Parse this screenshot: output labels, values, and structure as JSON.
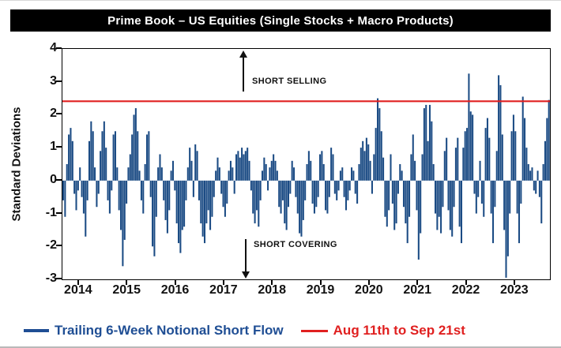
{
  "colors": {
    "bar_blue": "#1b4b84",
    "legend_blue": "#1f4e94",
    "red": "#e02020",
    "title_bg": "#000000",
    "title_fg": "#ffffff"
  },
  "title": "Prime Book – US Equities (Single Stocks + Macro Products)",
  "legend": [
    {
      "label": "Trailing 6-Week Notional Short Flow",
      "color": "#1f4e94",
      "swatch": "line"
    },
    {
      "label": "Aug 11th to Sep 21st",
      "color": "#e02020",
      "swatch": "line"
    }
  ],
  "chart_data": {
    "type": "bar",
    "title": "Prime Book – US Equities (Single Stocks + Macro Products)",
    "xlabel": "",
    "ylabel": "Standard Deviations",
    "ylim": [
      -3,
      4
    ],
    "y_ticks": [
      4,
      3,
      2,
      1,
      0,
      -1,
      -2,
      -3
    ],
    "x_ticks": [
      2014,
      2015,
      2016,
      2017,
      2018,
      2019,
      2020,
      2021,
      2022,
      2023
    ],
    "x_range": [
      2013.66,
      2023.72
    ],
    "grid": false,
    "legend_position": "bottom",
    "ref_line": {
      "label": "Aug 11th to Sep 21st",
      "value": 2.41,
      "color": "#e02020"
    },
    "annotations": [
      {
        "text": "SHORT SELLING",
        "arrow": "up"
      },
      {
        "text": "SHORT COVERING",
        "arrow": "down"
      }
    ],
    "series": [
      {
        "name": "Trailing 6-Week Notional Short Flow",
        "color": "#1b4b84",
        "x_start": 2013.66,
        "x_step": 0.03854,
        "values": [
          -0.6,
          -1.1,
          0.5,
          1.4,
          1.6,
          1.2,
          -0.4,
          -0.9,
          -0.3,
          0.4,
          -0.5,
          -1.0,
          -1.7,
          -0.6,
          1.2,
          1.8,
          1.5,
          0.4,
          -0.8,
          -0.4,
          0.9,
          1.5,
          1.8,
          1.0,
          -0.6,
          -1.0,
          -0.3,
          1.4,
          1.5,
          0.4,
          -0.9,
          -1.5,
          -2.6,
          -1.8,
          -0.7,
          0.4,
          0.8,
          1.4,
          2.0,
          2.2,
          1.5,
          0.3,
          -0.6,
          -1.0,
          0.5,
          1.4,
          1.5,
          -0.5,
          -2.0,
          -2.3,
          -1.1,
          0.4,
          0.8,
          0.4,
          -0.6,
          -1.2,
          -1.6,
          -0.9,
          0.3,
          0.6,
          -0.3,
          -1.3,
          -1.9,
          -2.2,
          -1.5,
          -1.4,
          -0.6,
          0.4,
          1.0,
          0.6,
          -0.5,
          1.1,
          0.9,
          -0.6,
          -1.3,
          -1.7,
          -1.9,
          -1.3,
          -0.9,
          -1.5,
          -1.1,
          -0.5,
          0.3,
          0.7,
          0.4,
          -0.4,
          -0.8,
          -1.1,
          -0.7,
          0.3,
          0.6,
          0.4,
          -0.4,
          0.8,
          0.9,
          0.7,
          1.0,
          0.8,
          0.9,
          1.0,
          0.6,
          -0.3,
          -1.0,
          -1.3,
          -0.9,
          -1.4,
          -0.6,
          0.3,
          0.7,
          0.5,
          -0.3,
          0.4,
          0.6,
          0.8,
          0.6,
          0.3,
          -0.8,
          -1.0,
          -0.6,
          -1.3,
          -1.5,
          -0.8,
          -0.4,
          0.6,
          0.4,
          -0.5,
          -1.0,
          -1.6,
          -1.7,
          -1.2,
          -0.6,
          0.5,
          0.9,
          0.6,
          -0.7,
          -1.0,
          -0.8,
          -0.5,
          0.8,
          0.9,
          0.5,
          -0.9,
          -1.0,
          -0.5,
          1.0,
          0.8,
          -0.4,
          -0.6,
          -0.3,
          0.3,
          0.4,
          -0.5,
          -0.9,
          -0.6,
          -0.3,
          0.4,
          0.3,
          -0.4,
          -0.7,
          0.5,
          1.0,
          1.2,
          0.9,
          1.3,
          1.1,
          0.6,
          -0.4,
          0.8,
          1.6,
          2.5,
          2.2,
          1.5,
          0.7,
          -1.1,
          -1.4,
          -0.9,
          0.8,
          -0.7,
          -1.5,
          -1.3,
          -0.4,
          0.5,
          0.3,
          -0.8,
          -1.3,
          -1.9,
          -1.1,
          0.8,
          1.4,
          0.6,
          -0.9,
          -2.4,
          -1.6,
          0.8,
          2.2,
          2.3,
          1.2,
          2.3,
          1.8,
          0.5,
          -1.0,
          -1.5,
          -1.1,
          -1.6,
          -0.8,
          0.9,
          1.3,
          -0.9,
          -1.5,
          -1.7,
          -0.8,
          1.0,
          1.3,
          -1.4,
          -1.9,
          1.0,
          1.5,
          1.6,
          3.25,
          2.1,
          2.0,
          -0.4,
          -1.0,
          -0.5,
          0.6,
          -0.7,
          -1.1,
          1.6,
          1.9,
          1.3,
          -1.0,
          -1.9,
          -0.8,
          0.9,
          3.2,
          2.9,
          1.4,
          -1.5,
          -2.95,
          -2.3,
          -1.0,
          1.5,
          2.0,
          1.5,
          -1.0,
          -1.9,
          -0.7,
          2.55,
          1.9,
          1.0,
          0.5,
          0.3,
          0.4,
          -0.3,
          -0.4,
          0.3,
          -0.5,
          -1.3,
          0.5,
          1.2,
          1.9,
          2.45
        ]
      }
    ]
  }
}
